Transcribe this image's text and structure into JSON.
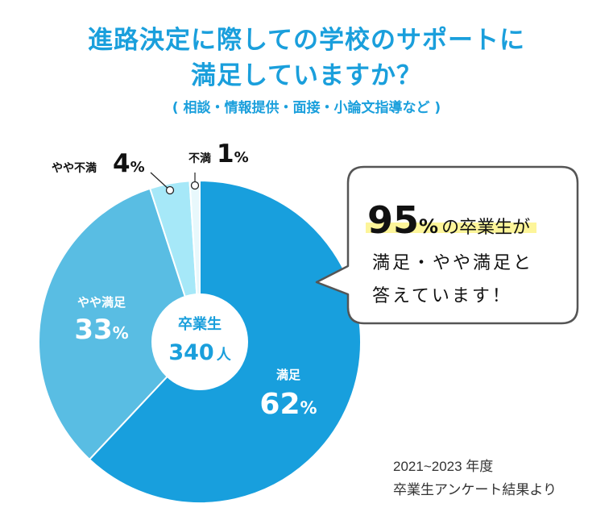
{
  "title_line1": "進路決定に際しての学校のサポートに",
  "title_line2": "満足していますか？",
  "subtitle": "( 相談・情報提供・面接・小論文指導など )",
  "chart_data": {
    "type": "pie",
    "slices": [
      {
        "label": "満足",
        "value": 62,
        "color": "#189fdd"
      },
      {
        "label": "やや満足",
        "value": 33,
        "color": "#59bde3"
      },
      {
        "label": "やや不満",
        "value": 4,
        "color": "#a6e8f8"
      },
      {
        "label": "不満",
        "value": 1,
        "color": "#e8f8fc"
      }
    ],
    "unit": "%",
    "center_label": "卒業生",
    "center_value": "340",
    "center_unit": "人"
  },
  "callout": {
    "big_number": "95",
    "percent": "%",
    "line1_rest": "の卒業生が",
    "line2": "満足・やや満足と",
    "line3": "答えています！"
  },
  "source_line1": "2021~2023 年度",
  "source_line2": "卒業生アンケート結果より",
  "colors": {
    "accent": "#1a9fdc",
    "highlight": "#fdf59a",
    "callout_border": "#555555"
  }
}
